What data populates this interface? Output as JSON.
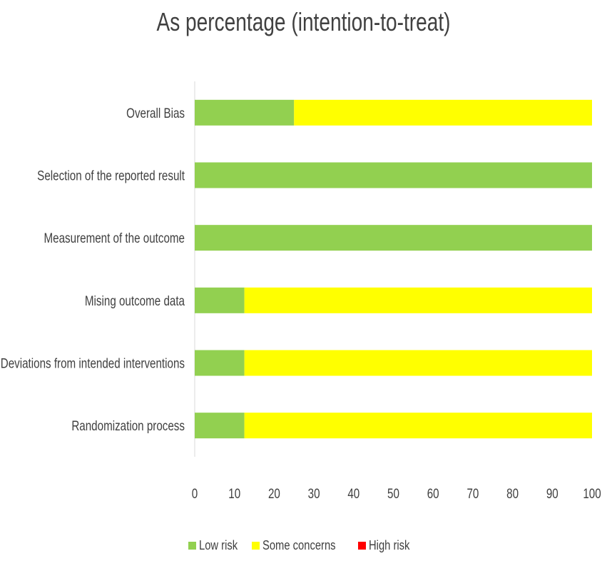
{
  "chart_data": {
    "type": "bar",
    "orientation": "horizontal",
    "stacked": true,
    "title": "As percentage (intention-to-treat)",
    "categories": [
      "Overall Bias",
      "Selection of the reported result",
      "Measurement of the outcome",
      "Mising outcome data",
      "Deviations from intended interventions",
      "Randomization process"
    ],
    "series": [
      {
        "name": "Low risk",
        "color": "#92D050",
        "values": [
          25,
          100,
          100,
          12.5,
          12.5,
          12.5
        ]
      },
      {
        "name": "Some concerns",
        "color": "#FFFF00",
        "values": [
          75,
          0,
          0,
          87.5,
          87.5,
          87.5
        ]
      },
      {
        "name": "High risk",
        "color": "#FF0000",
        "values": [
          0,
          0,
          0,
          0,
          0,
          0
        ]
      }
    ],
    "xlim": [
      0,
      100
    ],
    "xticks": [
      "0",
      "10",
      "20",
      "30",
      "40",
      "50",
      "60",
      "70",
      "80",
      "90",
      "100"
    ],
    "grid": false,
    "legend_position": "bottom"
  }
}
